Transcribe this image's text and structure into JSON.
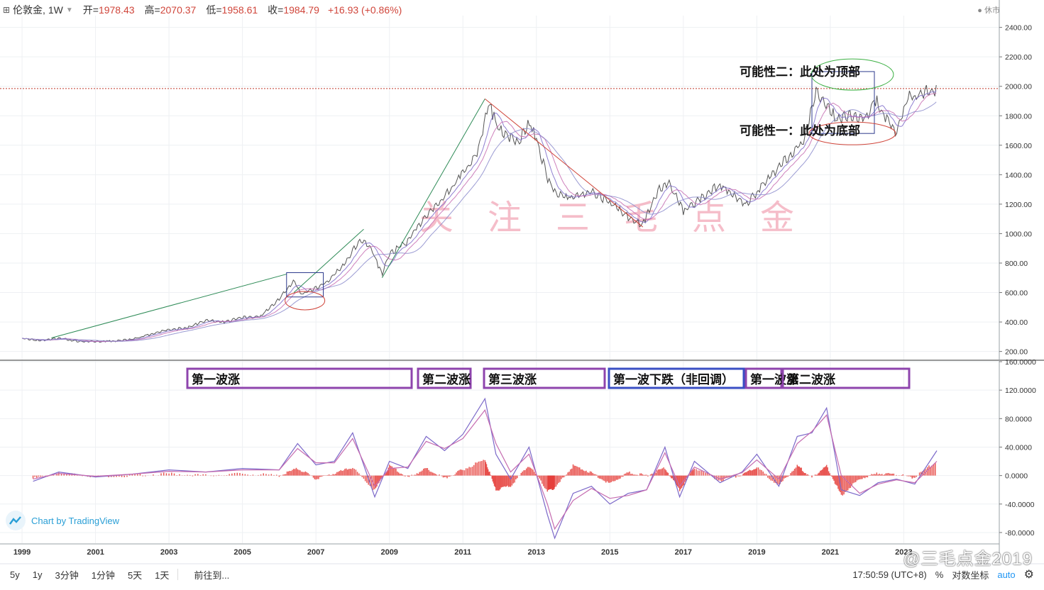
{
  "header": {
    "symbol": "伦敦金, 1W",
    "open_label": "开=",
    "open": "1978.43",
    "high_label": "高=",
    "high": "2070.37",
    "low_label": "低=",
    "low": "1958.61",
    "close_label": "收=",
    "close": "1984.79",
    "change": "+16.93 (+0.86%)",
    "market_status": "休市"
  },
  "annotations": {
    "possibility_two": "可能性二：此处为顶部",
    "possibility_one": "可能性一：此处为底部",
    "watermark": "关　注　三　毛　点　金",
    "waves": [
      "第一波涨",
      "第二波涨",
      "第三波涨",
      "第一波下跌（非回调）",
      "第一波涨",
      "第二波涨"
    ]
  },
  "footer": {
    "timeframes": [
      "5y",
      "1y",
      "3分钟",
      "1分钟",
      "5天",
      "1天"
    ],
    "goto": "前往到...",
    "time": "17:50:59 (UTC+8)",
    "percent": "%",
    "log": "对数坐标",
    "auto": "auto",
    "branding": "Chart by TradingView",
    "weibo": "@三毛点金2019"
  },
  "colors": {
    "price_line": "#555555",
    "ma1": "#7b68c9",
    "ma2": "#c56bb0",
    "trend_up": "#2e8b57",
    "trend_down": "#d0453a",
    "box": "#2d3a8c",
    "ellipse_red": "#d0453a",
    "ellipse_green": "#3cb043",
    "wave_box": "#8e44ad",
    "wave_box_blue": "#3a4fc4",
    "hist": "#e53935",
    "watermark": "#f2a7b8",
    "ref_line": "#c0392b"
  },
  "chart_data": [
    {
      "type": "line",
      "title": "伦敦金, 1W",
      "x_ticks": [
        "1999",
        "2001",
        "2003",
        "2005",
        "2007",
        "2009",
        "2011",
        "2013",
        "2015",
        "2017",
        "2019",
        "2021",
        "2023"
      ],
      "y_ticks": [
        "2400.00",
        "2200.00",
        "2000.00",
        "1800.00",
        "1600.00",
        "1400.00",
        "1200.00",
        "1000.00",
        "800.00",
        "600.00",
        "400.00",
        "200.00"
      ],
      "ylim": [
        150,
        2480
      ],
      "xlim": [
        1998.4,
        2025.6
      ],
      "reference_line": 1984.79,
      "series": [
        {
          "x": [
            1999.0,
            1999.5,
            2000.0,
            2000.5,
            2001.0,
            2001.5,
            2002.0,
            2002.5,
            2003.0,
            2003.5,
            2004.0,
            2004.5,
            2005.0,
            2005.5,
            2006.0,
            2006.4,
            2006.6,
            2006.9,
            2007.3,
            2007.8,
            2008.2,
            2008.5,
            2008.8,
            2009.0,
            2009.5,
            2010.0,
            2010.5,
            2011.0,
            2011.4,
            2011.7,
            2012.0,
            2012.5,
            2012.8,
            2013.0,
            2013.3,
            2013.5,
            2014.0,
            2014.5,
            2015.0,
            2015.5,
            2015.9,
            2016.3,
            2016.6,
            2017.0,
            2017.5,
            2018.0,
            2018.7,
            2019.0,
            2019.5,
            2020.0,
            2020.3,
            2020.6,
            2020.9,
            2021.2,
            2021.6,
            2022.0,
            2022.2,
            2022.8,
            2023.1,
            2023.5,
            2023.9
          ],
          "values": [
            288,
            275,
            290,
            270,
            268,
            270,
            282,
            315,
            350,
            360,
            410,
            400,
            430,
            440,
            560,
            680,
            590,
            620,
            670,
            800,
            960,
            900,
            720,
            860,
            950,
            1120,
            1250,
            1400,
            1560,
            1880,
            1700,
            1620,
            1760,
            1650,
            1380,
            1280,
            1250,
            1290,
            1210,
            1110,
            1060,
            1290,
            1350,
            1150,
            1250,
            1330,
            1200,
            1280,
            1420,
            1560,
            1650,
            1960,
            1880,
            1780,
            1800,
            1790,
            1920,
            1680,
            1920,
            1950,
            1984
          ]
        }
      ]
    },
    {
      "type": "line",
      "title": "MACD",
      "y_ticks": [
        "160.0000",
        "120.0000",
        "80.0000",
        "40.0000",
        "0.0000",
        "-40.0000",
        "-80.0000"
      ],
      "ylim": [
        -95,
        160
      ],
      "series": [
        {
          "x": [
            1999.3,
            2000.0,
            2001.0,
            2002.0,
            2003.0,
            2004.0,
            2005.0,
            2006.0,
            2006.5,
            2007.0,
            2007.5,
            2008.0,
            2008.6,
            2009.0,
            2009.5,
            2010.0,
            2010.5,
            2011.0,
            2011.6,
            2011.9,
            2012.3,
            2012.8,
            2013.3,
            2013.5,
            2014.0,
            2014.5,
            2015.0,
            2015.5,
            2016.0,
            2016.5,
            2016.9,
            2017.3,
            2018.0,
            2018.6,
            2019.0,
            2019.6,
            2020.1,
            2020.5,
            2020.9,
            2021.3,
            2021.8,
            2022.3,
            2022.8,
            2023.3,
            2023.9
          ],
          "values": [
            -8,
            5,
            -2,
            2,
            8,
            5,
            10,
            8,
            45,
            15,
            20,
            60,
            -30,
            20,
            10,
            55,
            35,
            58,
            108,
            30,
            -5,
            40,
            -55,
            -88,
            -25,
            -15,
            -40,
            -25,
            -20,
            40,
            -30,
            20,
            -10,
            5,
            30,
            -15,
            55,
            60,
            95,
            -20,
            -28,
            -10,
            -5,
            -12,
            35
          ]
        },
        {
          "x": [
            1999.3,
            2000.0,
            2001.0,
            2002.0,
            2003.0,
            2004.0,
            2005.0,
            2006.0,
            2006.5,
            2007.0,
            2007.5,
            2008.0,
            2008.6,
            2009.0,
            2009.5,
            2010.0,
            2010.5,
            2011.0,
            2011.6,
            2011.9,
            2012.3,
            2012.8,
            2013.3,
            2013.5,
            2014.0,
            2014.5,
            2015.0,
            2015.5,
            2016.0,
            2016.5,
            2016.9,
            2017.3,
            2018.0,
            2018.6,
            2019.0,
            2019.6,
            2020.1,
            2020.5,
            2020.9,
            2021.3,
            2021.8,
            2022.3,
            2022.8,
            2023.3,
            2023.9
          ],
          "values": [
            -5,
            3,
            -1,
            2,
            6,
            5,
            8,
            8,
            38,
            18,
            18,
            52,
            -15,
            10,
            12,
            48,
            38,
            52,
            92,
            45,
            5,
            30,
            -40,
            -75,
            -35,
            -18,
            -32,
            -28,
            -20,
            32,
            -15,
            12,
            -5,
            4,
            22,
            -5,
            45,
            62,
            85,
            0,
            -25,
            -12,
            -6,
            -10,
            20
          ]
        }
      ]
    }
  ]
}
